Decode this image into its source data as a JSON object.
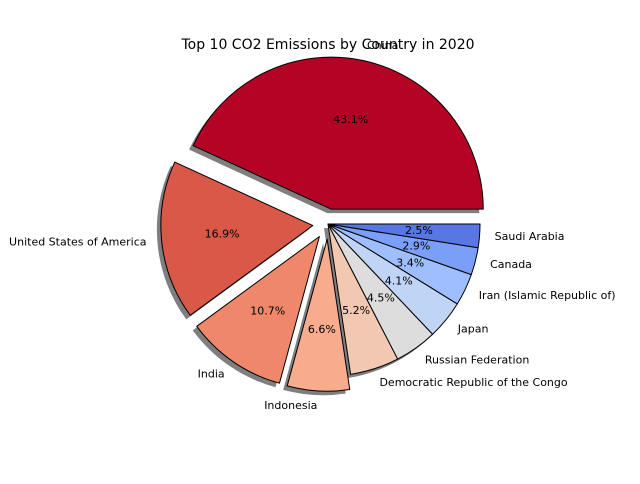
{
  "chart_data": {
    "type": "pie",
    "title": "Top 10 CO2 Emissions by Country in 2020",
    "slices": [
      {
        "label": "China",
        "value": 43.1,
        "pct_text": "43.1%",
        "color": "#b40426"
      },
      {
        "label": "United States of America",
        "value": 16.9,
        "pct_text": "16.9%",
        "color": "#d95847"
      },
      {
        "label": "India",
        "value": 10.7,
        "pct_text": "10.7%",
        "color": "#ef886b"
      },
      {
        "label": "Indonesia",
        "value": 6.6,
        "pct_text": "6.6%",
        "color": "#f7ac8e"
      },
      {
        "label": "Democratic Republic of the Congo",
        "value": 5.2,
        "pct_text": "5.2%",
        "color": "#f3c8b2"
      },
      {
        "label": "Russian Federation",
        "value": 4.5,
        "pct_text": "4.5%",
        "color": "#dddddd"
      },
      {
        "label": "Japan",
        "value": 4.1,
        "pct_text": "4.1%",
        "color": "#c0d4f5"
      },
      {
        "label": "Iran (Islamic Republic of)",
        "value": 3.4,
        "pct_text": "3.4%",
        "color": "#9ebeff"
      },
      {
        "label": "Canada",
        "value": 2.9,
        "pct_text": "2.9%",
        "color": "#7b9ff9"
      },
      {
        "label": "Saudi Arabia",
        "value": 2.5,
        "pct_text": "2.5%",
        "color": "#5977e3"
      }
    ],
    "explode": [
      0.1,
      0.1,
      0.1,
      0.1,
      0.0,
      0.0,
      0.0,
      0.0,
      0.0,
      0.0
    ],
    "shadow": true,
    "start_angle_deg": 0,
    "direction": "counterclockwise",
    "legend": "none",
    "grid": false
  }
}
